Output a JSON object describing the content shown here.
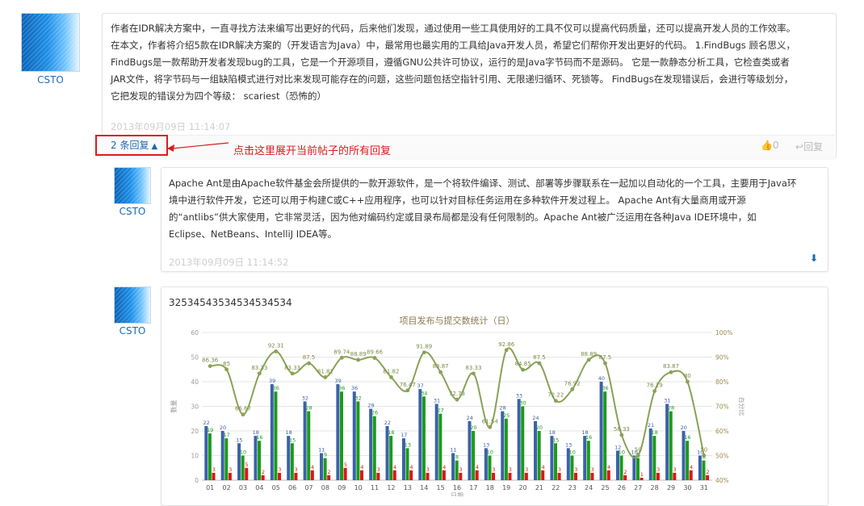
{
  "post": {
    "user": "CSTO",
    "lines": [
      "作者在IDR解决方案中，一直寻找方法来编写出更好的代码，后来他们发现，通过使用一些工具使用好的工具不仅可以提高代码质量，还可以提高开发人员的工作效率。",
      "在本文，作者将介绍5款在IDR解决方案的（开发语言为Java）中，最常用也最实用的工具给Java开发人员，希望它们帮你开发出更好的代码。 1.FindBugs 顾名思义，",
      "FindBugs是一款帮助开发者发现bug的工具，它是一个开源项目，遵循GNU公共许可协议，运行的是Java字节码而不是源码。 它是一款静态分析工具，它检查类或者",
      "JAR文件，将字节码与一组缺陷模式进行对比来发现可能存在的问题，这些问题包括空指针引用、无限递归循环、死锁等。 FindBugs在发现错误后，会进行等级划分，",
      "它把发现的错误分为四个等级： scariest（恐怖的）"
    ],
    "time": "2013年09月09日 11:14:07",
    "reply_toggle": "2 条回复",
    "likes": "0",
    "reply_label": "回复"
  },
  "annotation": "点击这里展开当前帖子的所有回复",
  "replies": [
    {
      "user": "CSTO",
      "lines": [
        "Apache Ant是由Apache软件基金会所提供的一款开源软件，是一个将软件编译、测试、部署等步骤联系在一起加以自动化的一个工具，主要用于Java环",
        "境中进行软件开发，它还可以用于构建C或C++应用程序，也可以针对目标任务运用在多种软件开发过程上。 Apache Ant有大量商用或开源",
        "的“antlibs”供大家使用，它非常灵活，因为他对编码约定或目录布局都是没有任何限制的。Apache Ant被广泛运用在各种Java IDE环境中，如",
        "Eclipse、NetBeans、IntelliJ IDEA等。"
      ],
      "time": "2013年09月09日 11:14:52"
    },
    {
      "user": "CSTO",
      "text": "32534543534534534534"
    }
  ],
  "chart_data": {
    "type": "bar",
    "title": "项目发布与提交数统计（日）",
    "xlabel": "日期",
    "ylabel": "数量",
    "y2label": "百分比",
    "ylim": [
      0,
      60
    ],
    "y2lim": [
      40,
      100
    ],
    "y_ticks": [
      "0",
      "10",
      "20",
      "30",
      "40",
      "50",
      "60"
    ],
    "y2_ticks": [
      "40%",
      "50%",
      "60%",
      "70%",
      "80%",
      "90%",
      "100%"
    ],
    "categories": [
      "01",
      "02",
      "03",
      "04",
      "05",
      "06",
      "07",
      "08",
      "09",
      "10",
      "11",
      "12",
      "13",
      "14",
      "15",
      "16",
      "17",
      "18",
      "19",
      "20",
      "21",
      "22",
      "23",
      "24",
      "25",
      "26",
      "27",
      "28",
      "29",
      "30",
      "31"
    ],
    "series": [
      {
        "color": "#3b62a8",
        "values": [
          22,
          20,
          15,
          18,
          39,
          18,
          32,
          11,
          39,
          36,
          29,
          22,
          17,
          37,
          31,
          11,
          24,
          13,
          28,
          33,
          24,
          18,
          13,
          18,
          40,
          12,
          10,
          21,
          31,
          20,
          10
        ]
      },
      {
        "color": "#1a9b1a",
        "values": [
          19,
          17,
          10,
          16,
          36,
          15,
          28,
          9,
          36,
          32,
          26,
          18,
          13,
          34,
          27,
          8,
          20,
          10,
          25,
          30,
          20,
          15,
          10,
          16,
          36,
          10,
          9,
          18,
          28,
          16,
          8
        ]
      },
      {
        "color": "#e01414",
        "values": [
          3,
          3,
          5,
          2,
          3,
          3,
          4,
          2,
          5,
          4,
          3,
          4,
          4,
          3,
          4,
          3,
          4,
          3,
          3,
          3,
          4,
          3,
          3,
          3,
          4,
          2,
          1,
          3,
          3,
          4,
          2
        ]
      },
      {
        "color": "#8aa157",
        "type": "line",
        "values": [
          86.36,
          85,
          66.67,
          83.33,
          92.31,
          83.33,
          87.5,
          81.82,
          89.74,
          88.89,
          89.66,
          81.82,
          76.47,
          91.89,
          83.87,
          72.73,
          83.33,
          61.54,
          92.86,
          84.85,
          87.5,
          72.22,
          76.92,
          88.89,
          87.5,
          58.33,
          50,
          76.19,
          83.87,
          80,
          50
        ]
      }
    ]
  }
}
